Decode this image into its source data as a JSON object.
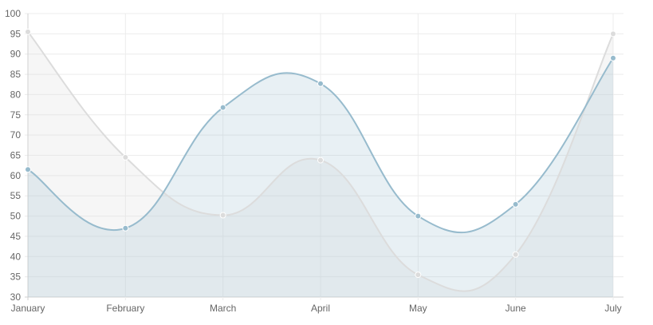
{
  "chart_data": {
    "type": "area",
    "categories": [
      "January",
      "February",
      "March",
      "April",
      "May",
      "June",
      "July"
    ],
    "ylim": [
      30,
      100
    ],
    "y_ticks": [
      30,
      35,
      40,
      45,
      50,
      55,
      60,
      65,
      70,
      75,
      80,
      85,
      90,
      95,
      100
    ],
    "grid": true,
    "title": "",
    "xlabel": "",
    "ylabel": "",
    "series": [
      {
        "values": [
          95.5,
          64.5,
          50.2,
          63.8,
          35.5,
          40.5,
          95
        ],
        "line_color": "#dcdcdc",
        "point_color": "#dcdcdc",
        "fill_color": "rgba(220,220,220,0.25)"
      },
      {
        "values": [
          61.5,
          47,
          76.8,
          82.7,
          50,
          52.9,
          89
        ],
        "line_color": "#97bbcd",
        "point_color": "#97bbcd",
        "fill_color": "rgba(151,187,205,0.22)"
      }
    ]
  }
}
